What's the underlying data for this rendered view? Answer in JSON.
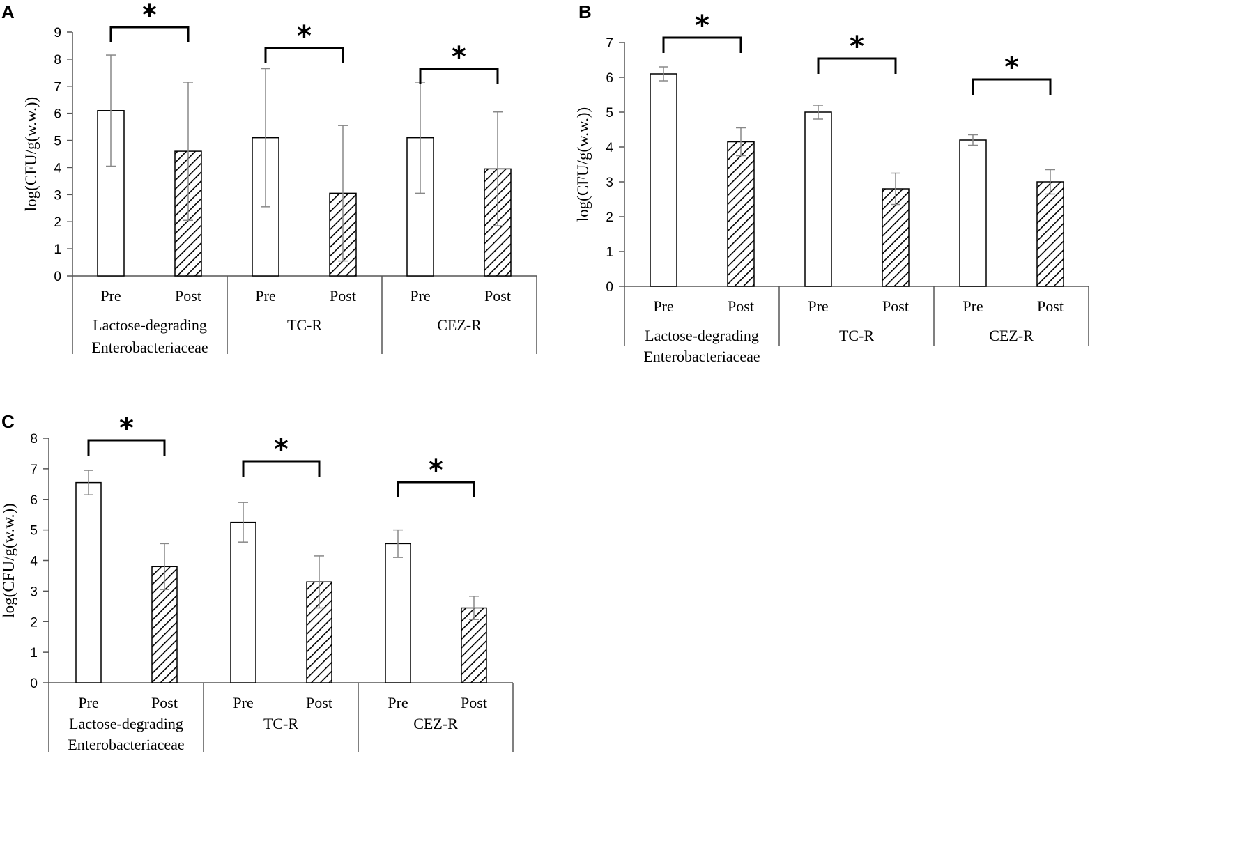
{
  "chart_data": [
    {
      "type": "bar",
      "panel": "A",
      "ylabel": "log(CFU/g(w.w.))",
      "ylim": [
        0,
        9
      ],
      "yticks": [
        "0",
        "1",
        "2",
        "3",
        "4",
        "5",
        "6",
        "7",
        "8",
        "9"
      ],
      "bar_labels": [
        "Pre",
        "Post"
      ],
      "categories": [
        {
          "lines": [
            "Lactose-degrading",
            "Enterobacteriaceae"
          ],
          "pre": 6.1,
          "pre_err": 2.05,
          "post": 4.6,
          "post_err": 2.55,
          "significance": "*"
        },
        {
          "lines": [
            "TC-R"
          ],
          "pre": 5.1,
          "pre_err": 2.55,
          "post": 3.05,
          "post_err": 2.5,
          "significance": "*"
        },
        {
          "lines": [
            "CEZ-R"
          ],
          "pre": 5.1,
          "pre_err": 2.05,
          "post": 3.95,
          "post_err": 2.1,
          "significance": "*"
        }
      ]
    },
    {
      "type": "bar",
      "panel": "B",
      "ylabel": "log(CFU/g(w.w.))",
      "ylim": [
        0,
        7
      ],
      "yticks": [
        "0",
        "1",
        "2",
        "3",
        "4",
        "5",
        "6",
        "7"
      ],
      "bar_labels": [
        "Pre",
        "Post"
      ],
      "categories": [
        {
          "lines": [
            "Lactose-degrading",
            "Enterobacteriaceae"
          ],
          "pre": 6.1,
          "pre_err": 0.2,
          "post": 4.15,
          "post_err": 0.4,
          "significance": "*"
        },
        {
          "lines": [
            "TC-R"
          ],
          "pre": 5.0,
          "pre_err": 0.2,
          "post": 2.8,
          "post_err": 0.45,
          "significance": "*"
        },
        {
          "lines": [
            "CEZ-R"
          ],
          "pre": 4.2,
          "pre_err": 0.15,
          "post": 3.0,
          "post_err": 0.35,
          "significance": "*"
        }
      ]
    },
    {
      "type": "bar",
      "panel": "C",
      "ylabel": "log(CFU/g(w.w.))",
      "ylim": [
        0,
        8
      ],
      "yticks": [
        "0",
        "1",
        "2",
        "3",
        "4",
        "5",
        "6",
        "7",
        "8"
      ],
      "bar_labels": [
        "Pre",
        "Post"
      ],
      "categories": [
        {
          "lines": [
            "Lactose-degrading",
            "Enterobacteriaceae"
          ],
          "pre": 6.55,
          "pre_err": 0.4,
          "post": 3.8,
          "post_err": 0.75,
          "significance": "*"
        },
        {
          "lines": [
            "TC-R"
          ],
          "pre": 5.25,
          "pre_err": 0.65,
          "post": 3.3,
          "post_err": 0.85,
          "significance": "*"
        },
        {
          "lines": [
            "CEZ-R"
          ],
          "pre": 4.55,
          "pre_err": 0.45,
          "post": 2.45,
          "post_err": 0.38,
          "significance": "*"
        }
      ]
    }
  ],
  "colors": {
    "axis": "#555555",
    "bar_stroke": "#000000",
    "error_bar": "#888888",
    "bracket": "#000000",
    "hatch": "#000000",
    "pre_fill": "#ffffff"
  }
}
